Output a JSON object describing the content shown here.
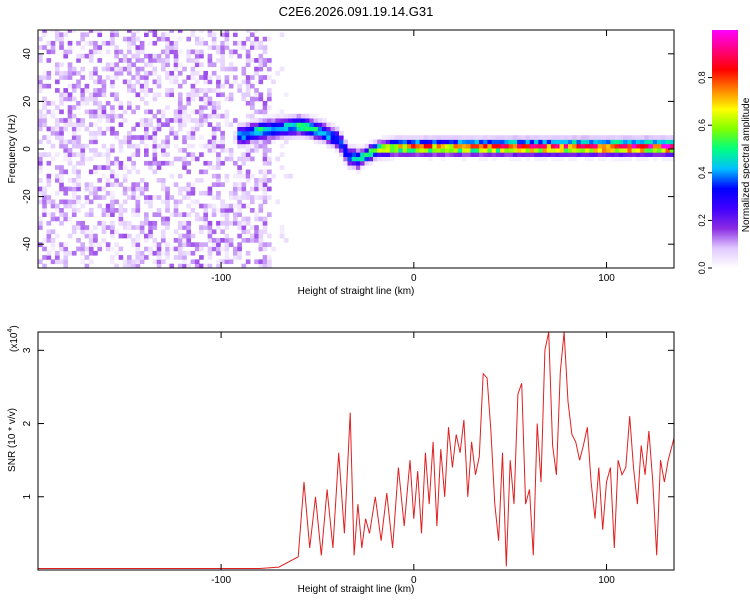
{
  "chart_data": [
    {
      "type": "heatmap",
      "title": "C2E6.2026.091.19.14.G31",
      "xlabel": "Height of straight line (km)",
      "ylabel": "Frequency (Hz)",
      "xlim": [
        -195,
        135
      ],
      "ylim": [
        -50,
        50
      ],
      "xticks": [
        -100,
        0,
        100
      ],
      "xtick_labels": [
        "-100",
        "0",
        "100"
      ],
      "yticks": [
        -40,
        -20,
        0,
        20,
        40
      ],
      "ytick_labels": [
        "-40",
        "-20",
        "0",
        "20",
        "40"
      ],
      "colorbar": {
        "label": "Normalized spectral amplitude",
        "range": [
          0,
          1
        ],
        "ticks": [
          0.0,
          0.2,
          0.4,
          0.6,
          0.8
        ],
        "tick_labels": [
          "0.0",
          "0.2",
          "0.4",
          "0.6",
          "0.8"
        ],
        "colors": [
          "#ffffff",
          "#e0c8ff",
          "#8a2be2",
          "#4000ff",
          "#0000ff",
          "#00c0ff",
          "#00ff80",
          "#80ff00",
          "#ffff00",
          "#ff8000",
          "#ff0000",
          "#ff0080",
          "#ff00ff"
        ]
      },
      "ridge": {
        "x": [
          -90,
          -80,
          -70,
          -60,
          -50,
          -40,
          -35,
          -30,
          -25,
          -20,
          -10,
          0,
          20,
          40,
          60,
          80,
          100,
          130
        ],
        "freq": [
          5,
          7,
          8,
          9,
          7,
          3,
          -4,
          -5,
          -3,
          -1,
          0,
          0,
          0,
          0,
          0,
          0,
          0,
          0
        ],
        "amplitude": [
          0.45,
          0.5,
          0.45,
          0.5,
          0.45,
          0.4,
          0.4,
          0.45,
          0.55,
          0.6,
          0.7,
          0.75,
          0.75,
          0.8,
          0.85,
          0.85,
          0.9,
          0.9
        ]
      },
      "noise_region": {
        "x_from": -195,
        "x_to": -75,
        "amplitude_range": [
          0.0,
          0.15
        ]
      }
    },
    {
      "type": "line",
      "xlabel": "Height of straight line (km)",
      "ylabel": "SNR (10 * v/v)",
      "scale_label": "(x10",
      "scale_exponent": "4",
      "scale_suffix": ")",
      "xlim": [
        -195,
        135
      ],
      "ylim": [
        0,
        3.25
      ],
      "xticks": [
        -100,
        0,
        100
      ],
      "xtick_labels": [
        "-100",
        "0",
        "100"
      ],
      "yticks": [
        1,
        2,
        3
      ],
      "ytick_labels": [
        "1",
        "2",
        "3"
      ],
      "series": [
        {
          "name": "SNR",
          "color": "#e02020",
          "x": [
            -195,
            -150,
            -100,
            -80,
            -70,
            -60,
            -57,
            -54,
            -51,
            -48,
            -45,
            -42,
            -39,
            -36,
            -33,
            -31,
            -29,
            -27,
            -25,
            -23,
            -20,
            -17,
            -14,
            -11,
            -8,
            -5,
            -2,
            0,
            2,
            4,
            6,
            8,
            10,
            12,
            14,
            16,
            18,
            20,
            22,
            24,
            26,
            28,
            30,
            32,
            34,
            36,
            38,
            40,
            42,
            44,
            46,
            48,
            50,
            52,
            54,
            56,
            58,
            60,
            62,
            64,
            66,
            68,
            70,
            72,
            74,
            76,
            78,
            80,
            82,
            84,
            86,
            88,
            90,
            92,
            94,
            96,
            98,
            100,
            102,
            104,
            106,
            108,
            110,
            112,
            114,
            116,
            118,
            120,
            122,
            124,
            126,
            128,
            130,
            132,
            135
          ],
          "values": [
            0.02,
            0.02,
            0.02,
            0.02,
            0.04,
            0.18,
            1.2,
            0.3,
            1.0,
            0.2,
            1.1,
            0.3,
            1.6,
            0.5,
            2.15,
            0.2,
            0.9,
            0.3,
            0.7,
            0.5,
            1.0,
            0.4,
            1.05,
            0.3,
            1.4,
            0.6,
            1.5,
            0.7,
            1.35,
            0.5,
            1.6,
            0.9,
            1.75,
            0.6,
            1.65,
            1.0,
            1.95,
            1.4,
            1.85,
            1.6,
            2.05,
            1.0,
            1.75,
            1.3,
            1.55,
            2.68,
            2.62,
            1.9,
            0.9,
            0.4,
            1.6,
            0.05,
            1.5,
            0.9,
            2.4,
            2.55,
            0.9,
            1.1,
            0.2,
            2.0,
            1.2,
            3.0,
            3.25,
            1.7,
            1.3,
            2.7,
            3.25,
            2.3,
            1.85,
            1.75,
            1.5,
            1.7,
            1.95,
            1.2,
            0.7,
            1.4,
            0.55,
            1.2,
            1.4,
            0.3,
            1.5,
            1.3,
            1.4,
            2.1,
            1.4,
            0.9,
            1.7,
            1.3,
            1.9,
            1.2,
            0.2,
            1.5,
            1.2,
            1.5,
            1.8
          ]
        }
      ]
    }
  ]
}
